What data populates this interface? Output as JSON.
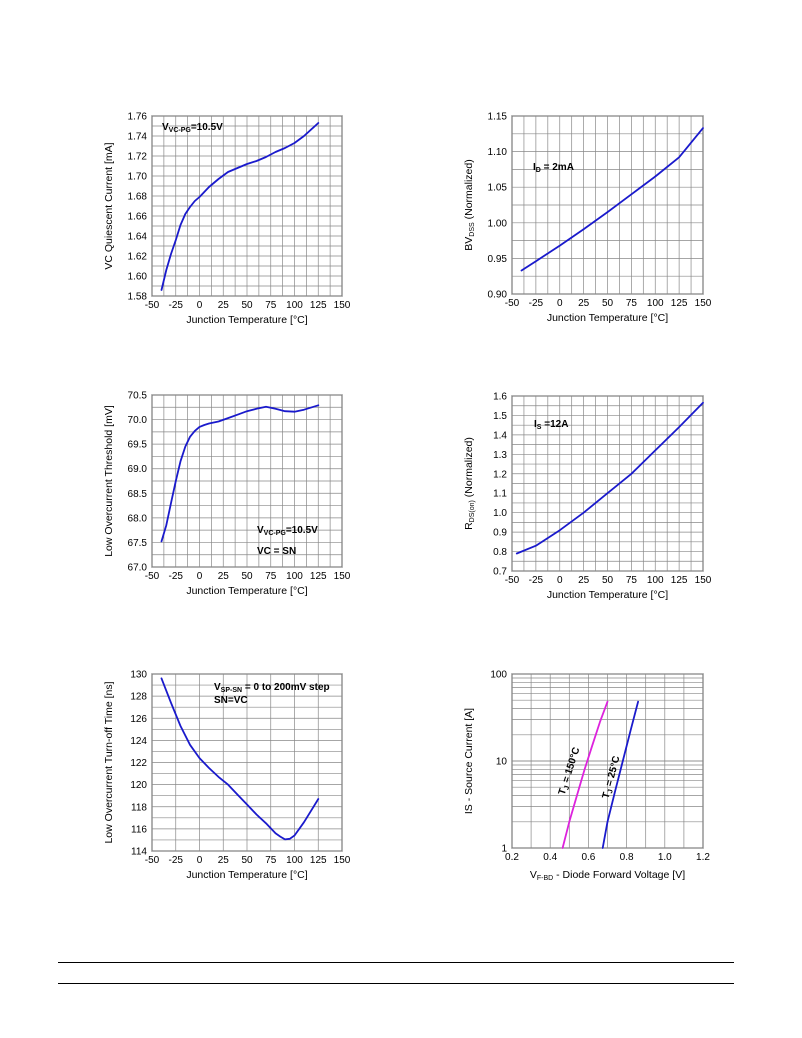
{
  "chart_data": [
    {
      "type": "line",
      "ylabel": "VC Quiescent Current [mA]",
      "xlabel": "Junction Temperature [°C]",
      "xlim": [
        -50,
        150
      ],
      "ylim": [
        1.58,
        1.76
      ],
      "xticks": [
        "-50",
        "-25",
        "0",
        "25",
        "50",
        "75",
        "100",
        "125",
        "150"
      ],
      "yticks": [
        "1.58",
        "1.60",
        "1.62",
        "1.64",
        "1.66",
        "1.68",
        "1.70",
        "1.72",
        "1.74",
        "1.76"
      ],
      "annotations": [
        {
          "main": "V",
          "sub": "VC-PG",
          "rest": "=10.5V"
        }
      ],
      "series": [
        {
          "color": "#1a1acc",
          "x": [
            -40,
            -35,
            -30,
            -25,
            -20,
            -15,
            -10,
            -5,
            0,
            10,
            20,
            30,
            40,
            50,
            60,
            70,
            80,
            90,
            100,
            110,
            125
          ],
          "y": [
            1.586,
            1.606,
            1.622,
            1.636,
            1.651,
            1.662,
            1.669,
            1.675,
            1.679,
            1.689,
            1.697,
            1.704,
            1.708,
            1.712,
            1.715,
            1.719,
            1.724,
            1.728,
            1.733,
            1.74,
            1.753
          ]
        }
      ]
    },
    {
      "type": "line",
      "ylabel_main": "BV",
      "ylabel_sub": "DSS",
      "ylabel_rest": "  (Normalized)",
      "xlabel": "Junction Temperature [°C]",
      "xlim": [
        -50,
        150
      ],
      "ylim": [
        0.9,
        1.15
      ],
      "xticks": [
        "-50",
        "-25",
        "0",
        "25",
        "50",
        "75",
        "100",
        "125",
        "150"
      ],
      "yticks": [
        "0.90",
        "0.95",
        "1.00",
        "1.05",
        "1.10",
        "1.15"
      ],
      "annotations": [
        {
          "main": "I",
          "sub": "D",
          "rest": " = 2mA"
        }
      ],
      "series": [
        {
          "color": "#1a1acc",
          "x": [
            -40,
            -25,
            0,
            25,
            50,
            75,
            100,
            125,
            150
          ],
          "y": [
            0.933,
            0.946,
            0.968,
            0.991,
            1.015,
            1.04,
            1.065,
            1.092,
            1.133
          ]
        }
      ]
    },
    {
      "type": "line",
      "ylabel": "Low Overcurrent Threshold [mV]",
      "xlabel": "Junction Temperature [°C]",
      "xlim": [
        -50,
        150
      ],
      "ylim": [
        67.0,
        70.5
      ],
      "xticks": [
        "-50",
        "-25",
        "0",
        "25",
        "50",
        "75",
        "100",
        "125",
        "150"
      ],
      "yticks": [
        "67.0",
        "67.5",
        "68.0",
        "68.5",
        "69.0",
        "69.5",
        "70.0",
        "70.5"
      ],
      "annotations": [
        {
          "main": "V",
          "sub": "VC-PG",
          "rest": "=10.5V"
        },
        {
          "main": "VC = SN",
          "sub": "",
          "rest": ""
        }
      ],
      "series": [
        {
          "color": "#1a1acc",
          "x": [
            -40,
            -35,
            -30,
            -25,
            -20,
            -15,
            -10,
            -5,
            0,
            5,
            10,
            20,
            30,
            40,
            50,
            60,
            70,
            80,
            90,
            100,
            110,
            125
          ],
          "y": [
            67.52,
            67.85,
            68.3,
            68.75,
            69.15,
            69.45,
            69.65,
            69.77,
            69.85,
            69.89,
            69.92,
            69.96,
            70.03,
            70.1,
            70.17,
            70.22,
            70.26,
            70.22,
            70.17,
            70.16,
            70.2,
            70.29
          ]
        }
      ]
    },
    {
      "type": "line",
      "ylabel_main": "R",
      "ylabel_sub": "DS(on)",
      "ylabel_rest": " (Normalized)",
      "xlabel": "Junction Temperature [°C]",
      "xlim": [
        -50,
        150
      ],
      "ylim": [
        0.7,
        1.6
      ],
      "xticks": [
        "-50",
        "-25",
        "0",
        "25",
        "50",
        "75",
        "100",
        "125",
        "150"
      ],
      "yticks": [
        "0.7",
        "0.8",
        "0.9",
        "1.0",
        "1.1",
        "1.2",
        "1.3",
        "1.4",
        "1.5",
        "1.6"
      ],
      "annotations": [
        {
          "main": "I",
          "sub": "S",
          "rest": " =12A"
        }
      ],
      "series": [
        {
          "color": "#1a1acc",
          "x": [
            -45,
            -25,
            0,
            25,
            50,
            75,
            100,
            125,
            150
          ],
          "y": [
            0.79,
            0.83,
            0.91,
            1.0,
            1.1,
            1.2,
            1.32,
            1.44,
            1.565
          ]
        }
      ]
    },
    {
      "type": "line",
      "ylabel": "Low Overcurrent Turn-off Time [ns]",
      "xlabel": "Junction Temperature [°C]",
      "xlim": [
        -50,
        150
      ],
      "ylim": [
        114,
        130
      ],
      "xticks": [
        "-50",
        "-25",
        "0",
        "25",
        "50",
        "75",
        "100",
        "125",
        "150"
      ],
      "yticks": [
        "114",
        "116",
        "118",
        "120",
        "122",
        "124",
        "126",
        "128",
        "130"
      ],
      "annotations": [
        {
          "main": "V",
          "sub": "SP-SN",
          "rest": " = 0 to 200mV step"
        },
        {
          "main": "SN=VC",
          "sub": "",
          "rest": ""
        }
      ],
      "series": [
        {
          "color": "#1a1acc",
          "x": [
            -40,
            -30,
            -20,
            -10,
            0,
            10,
            20,
            30,
            40,
            50,
            60,
            70,
            80,
            85,
            90,
            95,
            100,
            110,
            120,
            125
          ],
          "y": [
            129.6,
            127.4,
            125.3,
            123.6,
            122.4,
            121.5,
            120.7,
            120.0,
            119.1,
            118.2,
            117.3,
            116.5,
            115.6,
            115.3,
            115.05,
            115.1,
            115.4,
            116.6,
            118.0,
            118.7
          ]
        }
      ]
    },
    {
      "type": "line",
      "ylabel": "IS - Source Current [A]",
      "xlabel_main": "V",
      "xlabel_sub": "F-BD",
      "xlabel_rest": " - Diode Forward Voltage [V]",
      "xlim": [
        0.2,
        1.2
      ],
      "ylim": [
        1,
        100
      ],
      "yscale": "log",
      "xticks": [
        "0.2",
        "0.4",
        "0.6",
        "0.8",
        "1.0",
        "1.2"
      ],
      "yticks": [
        "1",
        "10",
        "100"
      ],
      "series": [
        {
          "label_main": "T",
          "label_sub": "J",
          "label_rest": " = 150°C",
          "color": "#dd22dd",
          "x": [
            0.465,
            0.5,
            0.54,
            0.58,
            0.62,
            0.66,
            0.7
          ],
          "y": [
            1,
            2,
            4,
            8,
            15,
            28,
            48
          ]
        },
        {
          "label_main": "T",
          "label_sub": "J",
          "label_rest": " = 25°C",
          "color": "#1a1acc",
          "x": [
            0.675,
            0.7,
            0.74,
            0.78,
            0.82,
            0.86
          ],
          "y": [
            1,
            2,
            4.5,
            10,
            22,
            48
          ]
        }
      ]
    }
  ]
}
